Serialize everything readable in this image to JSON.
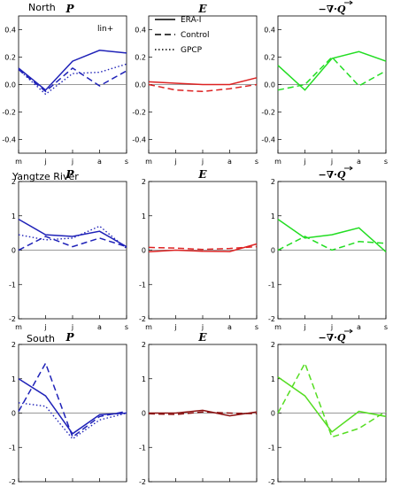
{
  "colors": {
    "north": "#1f22b8",
    "yangtze_P": "#1f22b8",
    "yangtze_E": "#dd2222",
    "yangtze_Q": "#22dd22",
    "south_P": "#1f22b8",
    "south_E": "#8b1010",
    "south_Q": "#55dd22",
    "north_E": "#dd2222",
    "north_Q": "#22dd22"
  },
  "legend": {
    "items": [
      "ERA-I",
      "Control",
      "GPCP"
    ]
  },
  "chart_data": [
    {
      "type": "line",
      "region": "North",
      "title": "P",
      "note": "lin+",
      "x": [
        "m",
        "j",
        "j",
        "a",
        "s"
      ],
      "ylim": [
        -0.5,
        0.5
      ],
      "yticks": [
        "0.4",
        "0.2",
        "0.0",
        "-0.2",
        "-0.4"
      ],
      "series": [
        {
          "name": "ERA-I",
          "values": [
            0.12,
            -0.04,
            0.17,
            0.25,
            0.23
          ]
        },
        {
          "name": "Control",
          "values": [
            0.11,
            -0.05,
            0.12,
            -0.01,
            0.1
          ]
        },
        {
          "name": "GPCP",
          "values": [
            0.11,
            -0.07,
            0.08,
            0.09,
            0.15
          ]
        }
      ]
    },
    {
      "type": "line",
      "title": "E",
      "x": [
        "m",
        "j",
        "j",
        "a",
        "s"
      ],
      "ylim": [
        -0.5,
        0.5
      ],
      "yticks": [
        "0.4",
        "0.2",
        "0.0",
        "-0.2",
        "-0.4"
      ],
      "series": [
        {
          "name": "ERA-I",
          "values": [
            0.02,
            0.01,
            0.0,
            0.0,
            0.05
          ]
        },
        {
          "name": "Control",
          "values": [
            0.0,
            -0.04,
            -0.05,
            -0.03,
            0.0
          ]
        }
      ]
    },
    {
      "type": "line",
      "title": "−∇·Q",
      "x": [
        "m",
        "j",
        "j",
        "a",
        "s"
      ],
      "ylim": [
        -0.5,
        0.5
      ],
      "yticks": [
        "0.4",
        "0.2",
        "0.0",
        "-0.2",
        "-0.4"
      ],
      "series": [
        {
          "name": "ERA-I",
          "values": [
            0.14,
            -0.04,
            0.19,
            0.24,
            0.17
          ]
        },
        {
          "name": "Control",
          "values": [
            -0.04,
            0.0,
            0.2,
            -0.01,
            0.1
          ]
        }
      ]
    },
    {
      "type": "line",
      "region": "Yangtze River",
      "title": "P",
      "x": [
        "m",
        "j",
        "j",
        "a",
        "s"
      ],
      "ylim": [
        -2,
        2
      ],
      "yticks": [
        "2",
        "1",
        "0",
        "-1",
        "-2"
      ],
      "series": [
        {
          "name": "ERA-I",
          "values": [
            0.9,
            0.45,
            0.4,
            0.55,
            0.1
          ]
        },
        {
          "name": "Control",
          "values": [
            0.0,
            0.4,
            0.1,
            0.35,
            0.1
          ]
        },
        {
          "name": "GPCP",
          "values": [
            0.45,
            0.3,
            0.35,
            0.7,
            0.05
          ]
        }
      ]
    },
    {
      "type": "line",
      "title": "E",
      "x": [
        "m",
        "j",
        "j",
        "a",
        "s"
      ],
      "ylim": [
        -2,
        2
      ],
      "yticks": [
        "2",
        "1",
        "0",
        "-1",
        "-2"
      ],
      "series": [
        {
          "name": "ERA-I",
          "values": [
            -0.05,
            0.0,
            -0.03,
            -0.04,
            0.18
          ]
        },
        {
          "name": "Control",
          "values": [
            0.08,
            0.06,
            0.02,
            0.05,
            0.1
          ]
        }
      ]
    },
    {
      "type": "line",
      "title": "−∇·Q",
      "x": [
        "m",
        "j",
        "j",
        "a",
        "s"
      ],
      "ylim": [
        -2,
        2
      ],
      "yticks": [
        "2",
        "1",
        "0",
        "-1",
        "-2"
      ],
      "series": [
        {
          "name": "ERA-I",
          "values": [
            0.9,
            0.35,
            0.45,
            0.65,
            -0.05
          ]
        },
        {
          "name": "Control",
          "values": [
            0.0,
            0.4,
            0.0,
            0.25,
            0.2
          ]
        }
      ]
    },
    {
      "type": "line",
      "region": "South",
      "title": "P",
      "x": [
        "m",
        "j",
        "j",
        "a",
        "s"
      ],
      "ylim": [
        -2,
        2
      ],
      "yticks": [
        "2",
        "1",
        "0",
        "-1",
        "-2"
      ],
      "series": [
        {
          "name": "ERA-I",
          "values": [
            1.0,
            0.5,
            -0.6,
            -0.05,
            0.0
          ]
        },
        {
          "name": "Control",
          "values": [
            0.05,
            1.45,
            -0.7,
            -0.1,
            0.05
          ]
        },
        {
          "name": "GPCP",
          "values": [
            0.3,
            0.2,
            -0.75,
            -0.2,
            0.0
          ]
        }
      ]
    },
    {
      "type": "line",
      "title": "E",
      "x": [
        "m",
        "j",
        "j",
        "a",
        "s"
      ],
      "ylim": [
        -2,
        2
      ],
      "yticks": [
        "2",
        "1",
        "0",
        "-1",
        "-2"
      ],
      "series": [
        {
          "name": "ERA-I",
          "values": [
            0.0,
            0.0,
            0.08,
            -0.08,
            0.03
          ]
        },
        {
          "name": "Control",
          "values": [
            -0.02,
            -0.04,
            0.03,
            0.0,
            -0.02
          ]
        }
      ]
    },
    {
      "type": "line",
      "title": "−∇·Q",
      "x": [
        "m",
        "j",
        "j",
        "a",
        "s"
      ],
      "ylim": [
        -2,
        2
      ],
      "yticks": [
        "2",
        "1",
        "0",
        "-1",
        "-2"
      ],
      "series": [
        {
          "name": "ERA-I",
          "values": [
            1.05,
            0.5,
            -0.55,
            0.05,
            -0.1
          ]
        },
        {
          "name": "Control",
          "values": [
            0.0,
            1.45,
            -0.7,
            -0.45,
            0.05
          ]
        }
      ]
    }
  ]
}
